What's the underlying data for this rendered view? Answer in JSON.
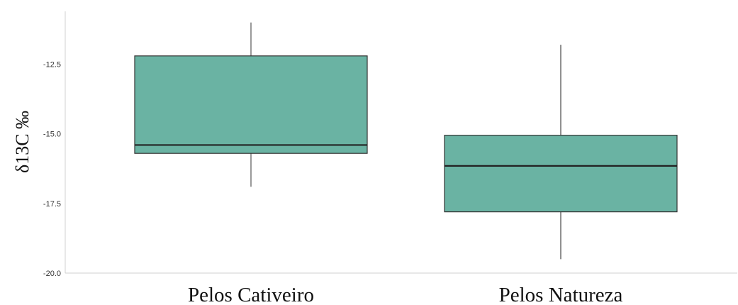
{
  "chart_data": {
    "type": "boxplot",
    "title": "",
    "xlabel": "",
    "ylabel": "δ13C ‰",
    "ylim": [
      -20.0,
      -10.6
    ],
    "yticks": [
      -12.5,
      -15.0,
      -17.5,
      -20.0
    ],
    "ytick_labels": [
      "-12.5",
      "-15.0",
      "-17.5",
      "-20.0"
    ],
    "grid": false,
    "box_color": "#6ab3a3",
    "edge_color": "#333333",
    "median_color": "#222222",
    "categories": [
      "Pelos Cativeiro",
      "Pelos Natureza"
    ],
    "boxes": [
      {
        "category": "Pelos Cativeiro",
        "whisker_low": -16.9,
        "q1": -15.7,
        "median": -15.4,
        "q3": -12.2,
        "whisker_high": -11.0
      },
      {
        "category": "Pelos Natureza",
        "whisker_low": -19.5,
        "q1": -17.8,
        "median": -16.15,
        "q3": -15.05,
        "whisker_high": -11.8
      }
    ]
  }
}
